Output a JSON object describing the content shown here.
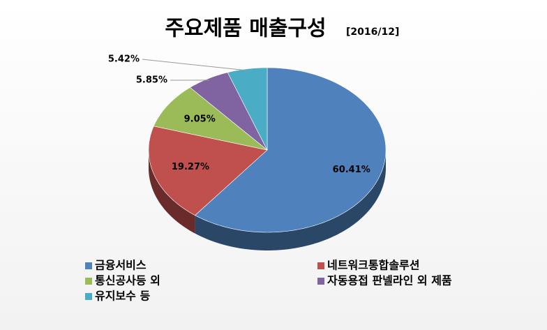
{
  "chart_data": {
    "type": "pie",
    "title": "주요제품 매출구성",
    "subtitle": "[2016/12]",
    "categories": [
      "금융서비스",
      "네트워크통합솔루션",
      "통신공사등 외",
      "자동용접 판넬라인 외 제품",
      "유지보수 등"
    ],
    "values": [
      60.41,
      19.27,
      9.05,
      5.85,
      5.42
    ],
    "value_labels": [
      "60.41%",
      "19.27%",
      "9.05%",
      "5.85%",
      "5.42%"
    ],
    "colors": [
      "#4f81bd",
      "#c0504d",
      "#9bbb59",
      "#8064a2",
      "#4bacc6"
    ],
    "legend": "bottom"
  }
}
